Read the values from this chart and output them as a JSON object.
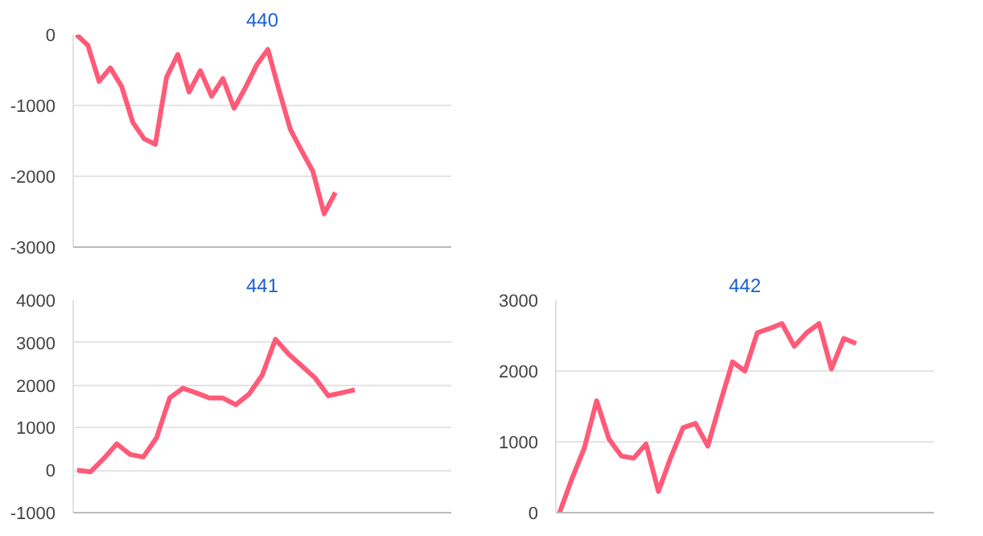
{
  "chart_data": [
    {
      "type": "line",
      "title": "440",
      "categories": [
        null,
        null,
        null,
        null,
        null,
        null,
        null,
        null,
        null,
        null,
        null,
        null,
        null,
        null,
        null,
        null,
        null,
        null,
        null,
        null,
        null,
        null,
        null,
        null,
        null,
        null,
        null,
        null,
        null,
        null,
        null,
        null,
        null,
        null
      ],
      "series": [
        {
          "color": "#ff5a78",
          "values": [
            0,
            -150,
            -660,
            -470,
            -730,
            -1240,
            -1470,
            -1550,
            -600,
            -280,
            -810,
            -510,
            -870,
            -620,
            -1040,
            -750,
            -430,
            -210,
            -790,
            -1340,
            -1640,
            -1930,
            -2530,
            -2230,
            null,
            null,
            null,
            null,
            null,
            null,
            null,
            null,
            null,
            null
          ]
        }
      ],
      "ylim": [
        -3000,
        0
      ],
      "yticks": [
        -3000,
        -2000,
        -1000,
        0
      ],
      "grid": "y",
      "tick_labels": "y"
    },
    {
      "type": "line",
      "title": "441",
      "categories": [
        null,
        null,
        null,
        null,
        null,
        null,
        null,
        null,
        null,
        null,
        null,
        null,
        null,
        null,
        null,
        null,
        null,
        null,
        null,
        null,
        null,
        null,
        null,
        null,
        null,
        null,
        null,
        null,
        null
      ],
      "series": [
        {
          "color": "#ff5a78",
          "values": [
            0,
            -40,
            270,
            620,
            370,
            310,
            760,
            1700,
            1930,
            1820,
            1700,
            1700,
            1540,
            1790,
            2240,
            3080,
            2730,
            2450,
            2170,
            1750,
            1820,
            1890,
            null,
            null,
            null,
            null,
            null,
            null,
            null
          ]
        }
      ],
      "ylim": [
        -1000,
        4000
      ],
      "yticks": [
        -1000,
        0,
        1000,
        2000,
        3000,
        4000
      ],
      "grid": "y",
      "tick_labels": "y"
    },
    {
      "type": "line",
      "title": "442",
      "categories": [
        null,
        null,
        null,
        null,
        null,
        null,
        null,
        null,
        null,
        null,
        null,
        null,
        null,
        null,
        null,
        null,
        null,
        null,
        null,
        null,
        null,
        null,
        null,
        null,
        null,
        null,
        null,
        null,
        null,
        null,
        null
      ],
      "series": [
        {
          "color": "#ff5a78",
          "values": [
            0,
            480,
            910,
            1580,
            1040,
            800,
            770,
            970,
            300,
            780,
            1200,
            1260,
            940,
            1550,
            2130,
            2000,
            2540,
            2600,
            2670,
            2350,
            2540,
            2670,
            2030,
            2460,
            2390,
            null,
            null,
            null,
            null,
            null,
            null
          ]
        }
      ],
      "ylim": [
        0,
        3000
      ],
      "yticks": [
        0,
        1000,
        2000,
        3000
      ],
      "grid": "y",
      "tick_labels": "y"
    }
  ]
}
